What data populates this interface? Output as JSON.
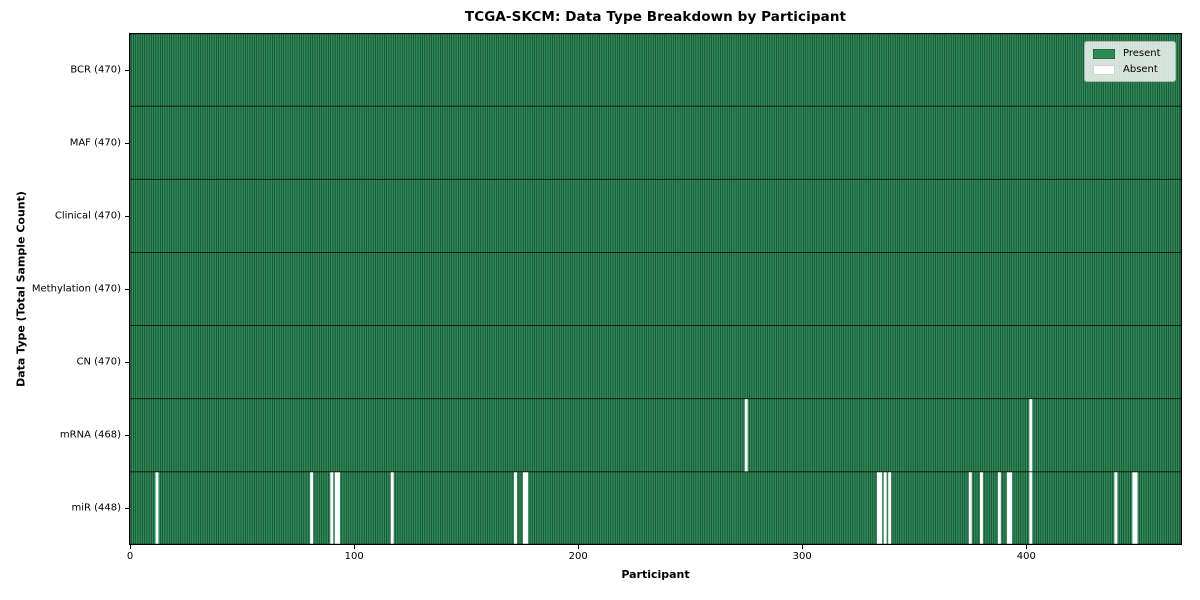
{
  "title": "TCGA-SKCM: Data Type Breakdown by Participant",
  "xlabel": "Participant",
  "ylabel": "Data Type (Total Sample Count)",
  "legend": {
    "present": "Present",
    "absent": "Absent",
    "position": "upper right"
  },
  "colors": {
    "present": "#2e8b57",
    "absent": "#ffffff",
    "bar_edge": "rgba(0,0,0,0.5)",
    "row_separator": "#0d0d0d",
    "plot_border": "#000000",
    "legend_border": "#b3b3b3"
  },
  "chart_data": {
    "type": "heatmap",
    "title": "TCGA-SKCM: Data Type Breakdown by Participant",
    "xlabel": "Participant",
    "ylabel": "Data Type (Total Sample Count)",
    "n_participants": 470,
    "x_ticks": [
      0,
      100,
      200,
      300,
      400
    ],
    "legend": [
      "Present",
      "Absent"
    ],
    "legend_position": "upper right",
    "grid": false,
    "rows": [
      {
        "label": "BCR (470)",
        "data_type": "BCR",
        "total": 470,
        "absent_participants": []
      },
      {
        "label": "MAF (470)",
        "data_type": "MAF",
        "total": 470,
        "absent_participants": []
      },
      {
        "label": "Clinical (470)",
        "data_type": "Clinical",
        "total": 470,
        "absent_participants": []
      },
      {
        "label": "Methylation (470)",
        "data_type": "Methylation",
        "total": 470,
        "absent_participants": []
      },
      {
        "label": "CN (470)",
        "data_type": "CN",
        "total": 470,
        "absent_participants": []
      },
      {
        "label": "mRNA (468)",
        "data_type": "mRNA",
        "total": 468,
        "absent_participants": [
          275,
          402
        ]
      },
      {
        "label": "miR (448)",
        "data_type": "miR",
        "total": 448,
        "absent_participants": [
          12,
          81,
          90,
          92,
          93,
          117,
          172,
          176,
          177,
          334,
          335,
          337,
          339,
          375,
          380,
          388,
          392,
          393,
          402,
          440,
          448,
          449
        ]
      }
    ]
  }
}
